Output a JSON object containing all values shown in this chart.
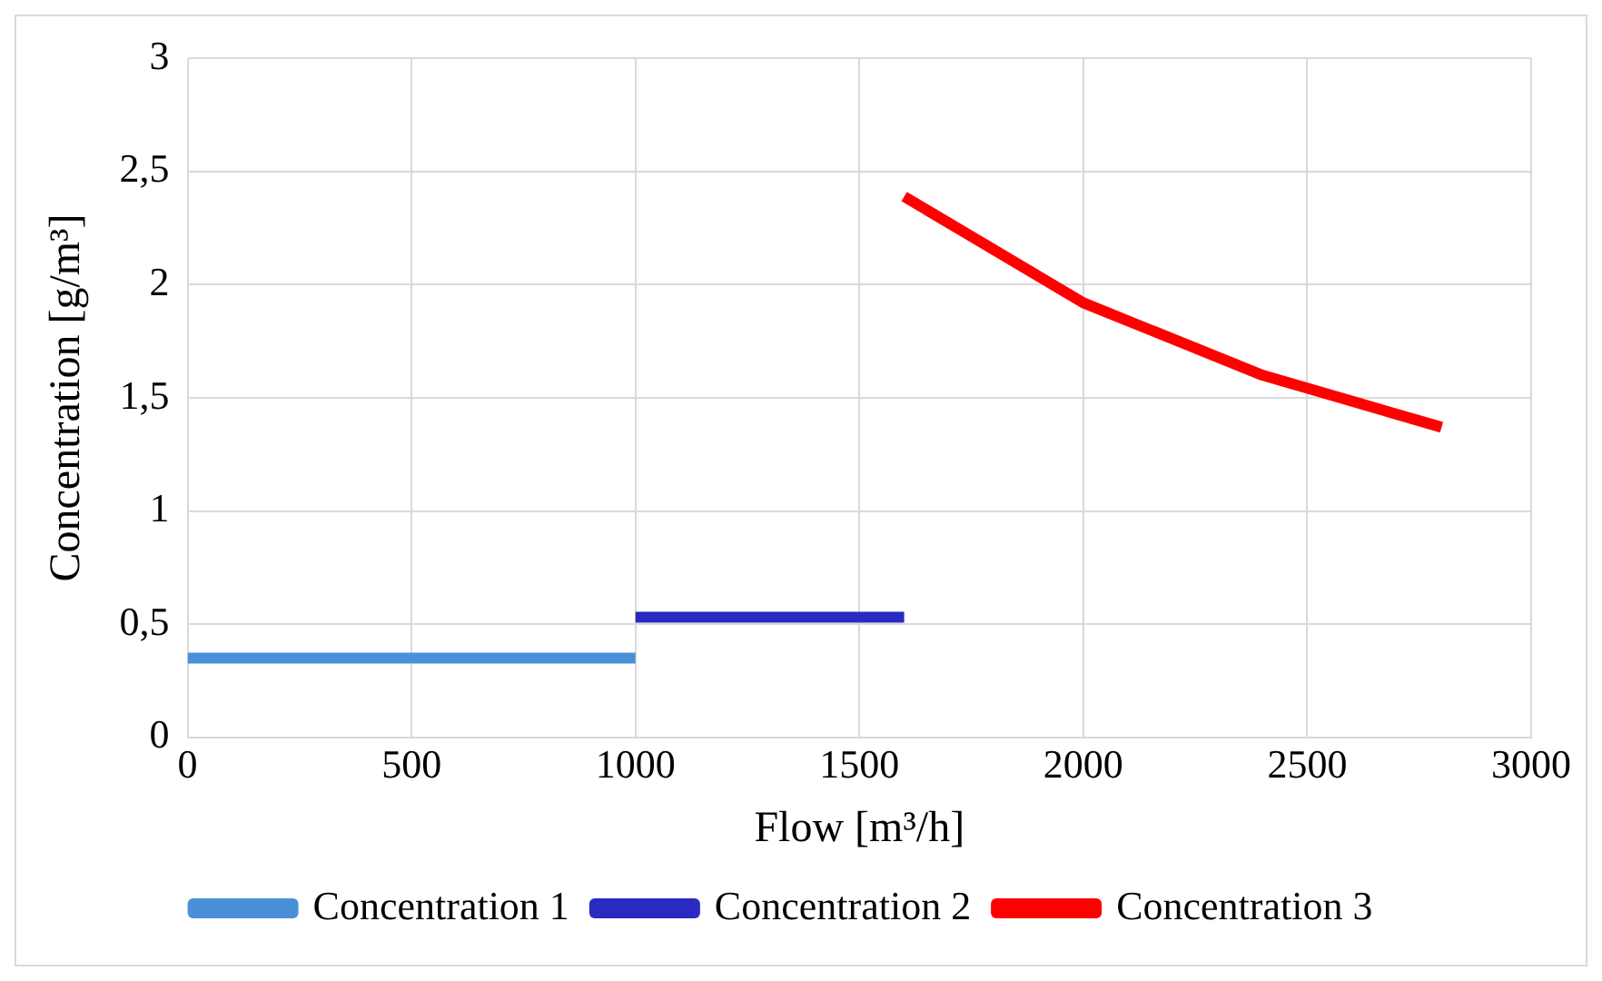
{
  "chart_data": {
    "type": "line",
    "xlabel": "Flow [m³/h]",
    "ylabel": "Concentration [g/m³]",
    "xlim": [
      0,
      3000
    ],
    "xticks": [
      0,
      500,
      1000,
      1500,
      2000,
      2500,
      3000
    ],
    "ylim": [
      0,
      3
    ],
    "yticks": [
      0,
      {
        "value": 0.5,
        "label": "0,5"
      },
      1,
      {
        "value": 1.5,
        "label": "1,5"
      },
      2,
      {
        "value": 2.5,
        "label": "2,5"
      },
      3
    ],
    "grid": true,
    "legend": "bottom",
    "marker": "none",
    "line_style": "solid",
    "series": [
      {
        "name": "Concentration 1",
        "color": "#4a90d9",
        "x": [
          0,
          1000
        ],
        "values": [
          0.35,
          0.35
        ]
      },
      {
        "name": "Concentration 2",
        "color": "#2a2ac0",
        "x": [
          1000,
          1600
        ],
        "values": [
          0.53,
          0.53
        ]
      },
      {
        "name": "Concentration 3",
        "color": "#ff0000",
        "x": [
          1600,
          2000,
          2400,
          2800
        ],
        "values": [
          2.39,
          1.92,
          1.6,
          1.37
        ]
      }
    ]
  }
}
